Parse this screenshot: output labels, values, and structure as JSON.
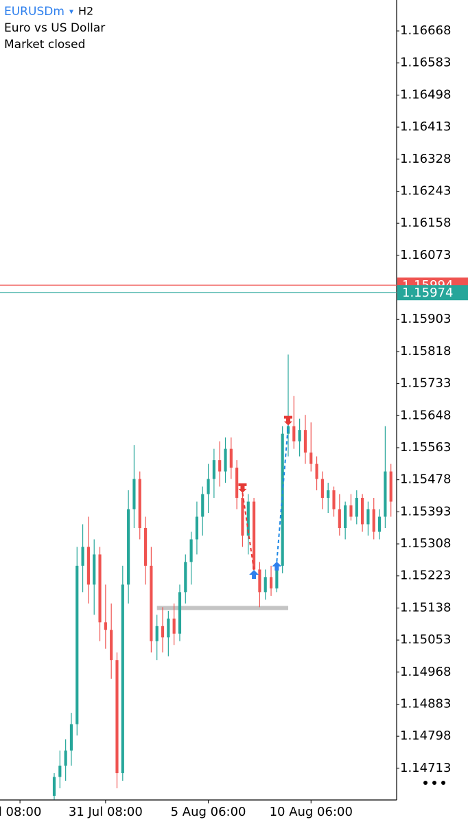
{
  "chart_data": {
    "type": "candlestick",
    "symbol": "EURUSDm",
    "timeframe": "H2",
    "description": "Euro vs US Dollar",
    "status": "Market closed",
    "up_color": "#26a69a",
    "down_color": "#ef5350",
    "ylim": [
      1.14629,
      1.1675
    ],
    "yticks": [
      1.16668,
      1.16583,
      1.16498,
      1.16413,
      1.16328,
      1.16243,
      1.16158,
      1.16073,
      1.15903,
      1.15818,
      1.15733,
      1.15648,
      1.15563,
      1.15478,
      1.15393,
      1.15308,
      1.15223,
      1.15138,
      1.15053,
      1.14968,
      1.14883,
      1.14798,
      1.14713
    ],
    "xlim": [
      -9.5,
      60
    ],
    "xticks": [
      {
        "value": -6,
        "label": "l 08:00"
      },
      {
        "value": 9,
        "label": "31 Jul 08:00"
      },
      {
        "value": 27,
        "label": "5 Aug 06:00"
      },
      {
        "value": 45,
        "label": "10 Aug 06:00"
      }
    ],
    "price_lines": [
      {
        "value": 1.15994,
        "color": "#ef5350"
      },
      {
        "value": 1.15974,
        "color": "#26a69a"
      }
    ],
    "open": [
      1.1464,
      1.1469,
      1.1472,
      1.1476,
      1.1483,
      1.1525,
      1.153,
      1.152,
      1.1528,
      1.151,
      1.1508,
      1.15,
      1.147,
      1.152,
      1.154,
      1.1548,
      1.1535,
      1.1525,
      1.1505,
      1.1509,
      1.1506,
      1.1511,
      1.1507,
      1.1518,
      1.1526,
      1.1532,
      1.1538,
      1.1544,
      1.1548,
      1.1553,
      1.155,
      1.1556,
      1.1551,
      1.1543,
      1.1533,
      1.1542,
      1.1524,
      1.1518,
      1.1522,
      1.1519,
      1.1525,
      1.156,
      1.1562,
      1.1558,
      1.1561,
      1.1555,
      1.1552,
      1.1548,
      1.1543,
      1.1545,
      1.154,
      1.1535,
      1.1541,
      1.1538,
      1.1543,
      1.1536,
      1.154,
      1.1534,
      1.1538,
      1.155
    ],
    "high": [
      1.147,
      1.1476,
      1.1479,
      1.1486,
      1.153,
      1.1536,
      1.1538,
      1.1532,
      1.153,
      1.152,
      1.1515,
      1.1502,
      1.1525,
      1.1545,
      1.1557,
      1.155,
      1.1538,
      1.153,
      1.1512,
      1.1514,
      1.1513,
      1.1515,
      1.152,
      1.1528,
      1.1534,
      1.1542,
      1.1546,
      1.1552,
      1.1556,
      1.1558,
      1.1559,
      1.1559,
      1.1553,
      1.1546,
      1.1544,
      1.1543,
      1.1526,
      1.1524,
      1.1525,
      1.1526,
      1.1562,
      1.1581,
      1.157,
      1.1564,
      1.1565,
      1.1563,
      1.1554,
      1.155,
      1.1547,
      1.1546,
      1.1544,
      1.1542,
      1.1544,
      1.1545,
      1.1544,
      1.1542,
      1.1543,
      1.154,
      1.1562,
      1.1552
    ],
    "low": [
      1.1463,
      1.1466,
      1.1468,
      1.1472,
      1.148,
      1.1518,
      1.1515,
      1.1512,
      1.1505,
      1.1503,
      1.1495,
      1.1466,
      1.1468,
      1.1515,
      1.1535,
      1.1532,
      1.152,
      1.1502,
      1.15,
      1.1502,
      1.1501,
      1.1504,
      1.1505,
      1.1515,
      1.152,
      1.1528,
      1.1533,
      1.1539,
      1.1543,
      1.1546,
      1.1547,
      1.1548,
      1.154,
      1.153,
      1.1528,
      1.1522,
      1.1514,
      1.1516,
      1.1517,
      1.1518,
      1.1523,
      1.1554,
      1.1556,
      1.1554,
      1.1552,
      1.155,
      1.1545,
      1.154,
      1.1539,
      1.1538,
      1.1533,
      1.1532,
      1.1537,
      1.1536,
      1.1534,
      1.1533,
      1.1532,
      1.1532,
      1.1535,
      1.1538
    ],
    "close": [
      1.1469,
      1.1472,
      1.1476,
      1.1483,
      1.1525,
      1.153,
      1.152,
      1.1528,
      1.151,
      1.1508,
      1.15,
      1.147,
      1.152,
      1.154,
      1.1548,
      1.1535,
      1.1525,
      1.1505,
      1.1509,
      1.1506,
      1.1511,
      1.1507,
      1.1518,
      1.1526,
      1.1532,
      1.1538,
      1.1544,
      1.1548,
      1.1553,
      1.155,
      1.1556,
      1.1551,
      1.1543,
      1.1533,
      1.1542,
      1.1524,
      1.1518,
      1.1522,
      1.1519,
      1.1525,
      1.156,
      1.1562,
      1.1558,
      1.1561,
      1.1555,
      1.1552,
      1.1548,
      1.1543,
      1.1545,
      1.154,
      1.1535,
      1.1541,
      1.1538,
      1.1543,
      1.1536,
      1.154,
      1.1534,
      1.1538,
      1.155,
      1.1542
    ],
    "trades": [
      {
        "color": "#e53935",
        "from": [
          33,
          1.15443
        ],
        "to": [
          35,
          1.15239
        ]
      },
      {
        "color": "#1e88e5",
        "from": [
          39,
          1.15261
        ],
        "to": [
          41,
          1.15622
        ]
      }
    ],
    "arrow_up_color": "#2f80ed",
    "arrow_down_color": "#e53935",
    "level": {
      "price": 1.15138,
      "from": 18,
      "to": 41,
      "color": "#c4c4c4"
    }
  }
}
